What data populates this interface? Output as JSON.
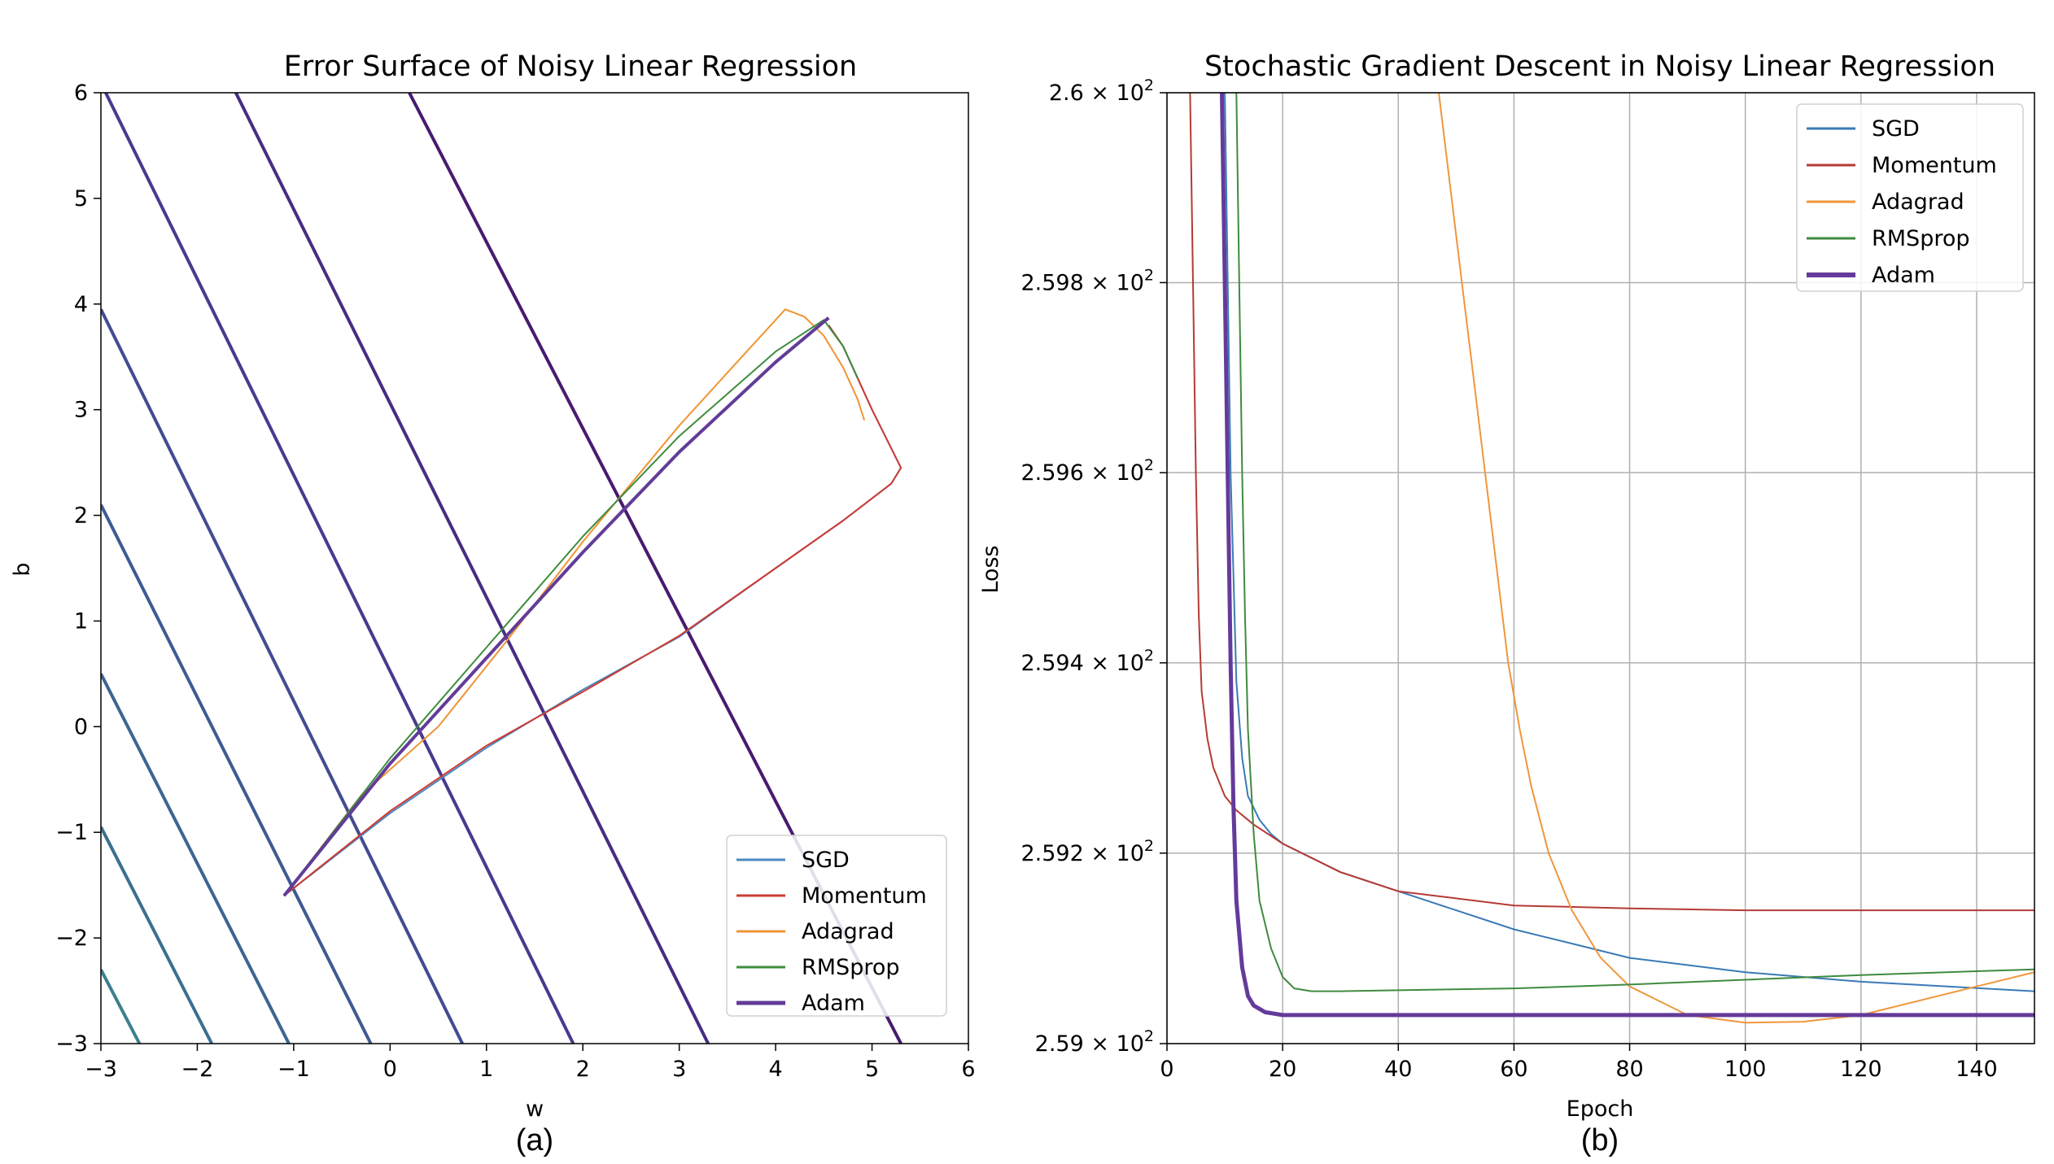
{
  "chart_data": [
    {
      "type": "line",
      "title": "Error Surface of Noisy Linear Regression",
      "xlabel": "w",
      "ylabel": "b",
      "caption": "(a)",
      "xlim": [
        -3,
        6
      ],
      "ylim": [
        -3,
        6
      ],
      "xticks": [
        -3,
        -2,
        -1,
        0,
        1,
        2,
        3,
        4,
        5,
        6
      ],
      "yticks": [
        -3,
        -2,
        -1,
        0,
        1,
        2,
        3,
        4,
        5,
        6
      ],
      "grid": false,
      "legend_position": "bottom-right",
      "contours": [
        {
          "color": "#3d7f8e",
          "points": [
            [
              -2.6,
              -3.0
            ],
            [
              -3.0,
              -2.3
            ]
          ]
        },
        {
          "color": "#3b6f91",
          "points": [
            [
              -1.85,
              -3.0
            ],
            [
              -3.0,
              -0.95
            ]
          ]
        },
        {
          "color": "#3d6591",
          "points": [
            [
              -1.05,
              -3.0
            ],
            [
              -3.0,
              0.5
            ]
          ]
        },
        {
          "color": "#3f5a92",
          "points": [
            [
              -0.2,
              -3.0
            ],
            [
              -3.0,
              2.1
            ]
          ]
        },
        {
          "color": "#434b91",
          "points": [
            [
              0.75,
              -3.0
            ],
            [
              -3.0,
              3.95
            ]
          ]
        },
        {
          "color": "#473a8e",
          "points": [
            [
              1.9,
              -3.0
            ],
            [
              -2.95,
              6.0
            ]
          ]
        },
        {
          "color": "#482c83",
          "points": [
            [
              3.3,
              -3.0
            ],
            [
              -1.6,
              6.0
            ]
          ]
        },
        {
          "color": "#471b6e",
          "points": [
            [
              5.3,
              -3.0
            ],
            [
              0.2,
              6.0
            ]
          ]
        }
      ],
      "series": [
        {
          "name": "SGD",
          "color": "#4a88c2",
          "width": 2,
          "points": [
            [
              -1.1,
              -1.6
            ],
            [
              0.0,
              -0.82
            ],
            [
              1.0,
              -0.2
            ],
            [
              2.0,
              0.35
            ],
            [
              3.0,
              0.85
            ],
            [
              4.0,
              1.5
            ],
            [
              4.7,
              1.95
            ],
            [
              5.2,
              2.3
            ],
            [
              5.3,
              2.45
            ],
            [
              5.0,
              3.0
            ],
            [
              4.7,
              3.6
            ],
            [
              4.55,
              3.8
            ]
          ]
        },
        {
          "name": "Momentum",
          "color": "#cc3b32",
          "width": 2,
          "points": [
            [
              -1.1,
              -1.6
            ],
            [
              0.0,
              -0.8
            ],
            [
              1.0,
              -0.18
            ],
            [
              2.0,
              0.33
            ],
            [
              3.0,
              0.86
            ],
            [
              4.0,
              1.5
            ],
            [
              4.7,
              1.95
            ],
            [
              5.2,
              2.3
            ],
            [
              5.3,
              2.45
            ],
            [
              5.0,
              3.0
            ],
            [
              4.7,
              3.6
            ],
            [
              4.55,
              3.8
            ]
          ]
        },
        {
          "name": "Adagrad",
          "color": "#ef9434",
          "width": 2,
          "points": [
            [
              -1.1,
              -1.6
            ],
            [
              -0.3,
              -0.65
            ],
            [
              0.5,
              0.0
            ],
            [
              1.2,
              0.8
            ],
            [
              2.0,
              1.75
            ],
            [
              3.0,
              2.85
            ],
            [
              3.6,
              3.45
            ],
            [
              4.1,
              3.95
            ],
            [
              4.3,
              3.88
            ],
            [
              4.5,
              3.7
            ],
            [
              4.7,
              3.4
            ],
            [
              4.85,
              3.1
            ],
            [
              4.92,
              2.9
            ]
          ]
        },
        {
          "name": "RMSprop",
          "color": "#3d8c3d",
          "width": 2,
          "points": [
            [
              -1.1,
              -1.6
            ],
            [
              0.0,
              -0.3
            ],
            [
              1.0,
              0.75
            ],
            [
              2.0,
              1.8
            ],
            [
              3.0,
              2.75
            ],
            [
              4.0,
              3.55
            ],
            [
              4.5,
              3.85
            ],
            [
              4.7,
              3.6
            ],
            [
              4.85,
              3.3
            ]
          ]
        },
        {
          "name": "Adam",
          "color": "#623c97",
          "width": 4,
          "points": [
            [
              -1.1,
              -1.6
            ],
            [
              0.0,
              -0.35
            ],
            [
              1.0,
              0.65
            ],
            [
              2.0,
              1.65
            ],
            [
              3.0,
              2.6
            ],
            [
              4.0,
              3.45
            ],
            [
              4.55,
              3.87
            ]
          ]
        }
      ]
    },
    {
      "type": "line",
      "title": "Stochastic Gradient Descent in Noisy Linear Regression",
      "xlabel": "Epoch",
      "ylabel": "Loss",
      "caption": "(b)",
      "xlim": [
        0,
        150
      ],
      "ylim": [
        259.0,
        260.0
      ],
      "yscale": "log",
      "xticks": [
        0,
        20,
        40,
        60,
        80,
        100,
        120,
        140
      ],
      "yticks": [
        259.0,
        259.2,
        259.4,
        259.6,
        259.8,
        260.0
      ],
      "yticklabels": [
        {
          "mant": "2.59",
          "exp": "2"
        },
        {
          "mant": "2.592",
          "exp": "2"
        },
        {
          "mant": "2.594",
          "exp": "2"
        },
        {
          "mant": "2.596",
          "exp": "2"
        },
        {
          "mant": "2.598",
          "exp": "2"
        },
        {
          "mant": "2.6",
          "exp": "2"
        }
      ],
      "grid": true,
      "legend_position": "top-right",
      "series": [
        {
          "name": "SGD",
          "color": "#3a7ab5",
          "width": 2,
          "x": [
            10,
            11,
            12,
            13,
            14,
            16,
            18,
            20,
            25,
            30,
            40,
            50,
            60,
            70,
            80,
            100,
            120,
            150
          ],
          "y": [
            260.0,
            259.6,
            259.38,
            259.3,
            259.26,
            259.235,
            259.22,
            259.21,
            259.195,
            259.18,
            259.16,
            259.14,
            259.12,
            259.105,
            259.09,
            259.075,
            259.065,
            259.055
          ]
        },
        {
          "name": "Momentum",
          "color": "#b53a35",
          "width": 2,
          "x": [
            4,
            4.5,
            5,
            5.5,
            6,
            7,
            8,
            10,
            12,
            15,
            20,
            30,
            40,
            60,
            80,
            100,
            120,
            150
          ],
          "y": [
            260.0,
            259.8,
            259.6,
            259.45,
            259.37,
            259.32,
            259.29,
            259.26,
            259.245,
            259.23,
            259.21,
            259.18,
            259.16,
            259.145,
            259.142,
            259.14,
            259.14,
            259.14
          ]
        },
        {
          "name": "Adagrad",
          "color": "#f0963a",
          "width": 2,
          "x": [
            47,
            49,
            51,
            53,
            55,
            57,
            59,
            61,
            63,
            66,
            70,
            75,
            80,
            90,
            100,
            110,
            120,
            130,
            140,
            150
          ],
          "y": [
            260.0,
            259.9,
            259.8,
            259.7,
            259.6,
            259.5,
            259.4,
            259.33,
            259.27,
            259.2,
            259.14,
            259.09,
            259.06,
            259.03,
            259.022,
            259.023,
            259.03,
            259.045,
            259.06,
            259.075
          ]
        },
        {
          "name": "RMSprop",
          "color": "#3f8a3f",
          "width": 2,
          "x": [
            12,
            12.5,
            13,
            13.5,
            14,
            15,
            16,
            18,
            20,
            22,
            25,
            30,
            40,
            60,
            80,
            100,
            120,
            150
          ],
          "y": [
            260.0,
            259.8,
            259.6,
            259.45,
            259.33,
            259.22,
            259.15,
            259.1,
            259.07,
            259.058,
            259.055,
            259.055,
            259.056,
            259.058,
            259.062,
            259.067,
            259.072,
            259.078
          ]
        },
        {
          "name": "Adam",
          "color": "#643a9a",
          "width": 5,
          "x": [
            9.5,
            10,
            10.5,
            11,
            11.5,
            12,
            13,
            14,
            15,
            17,
            20,
            25,
            30,
            50,
            100,
            150
          ],
          "y": [
            260.0,
            259.8,
            259.6,
            259.4,
            259.25,
            259.15,
            259.08,
            259.05,
            259.04,
            259.033,
            259.03,
            259.03,
            259.03,
            259.03,
            259.03,
            259.03
          ]
        }
      ]
    }
  ]
}
